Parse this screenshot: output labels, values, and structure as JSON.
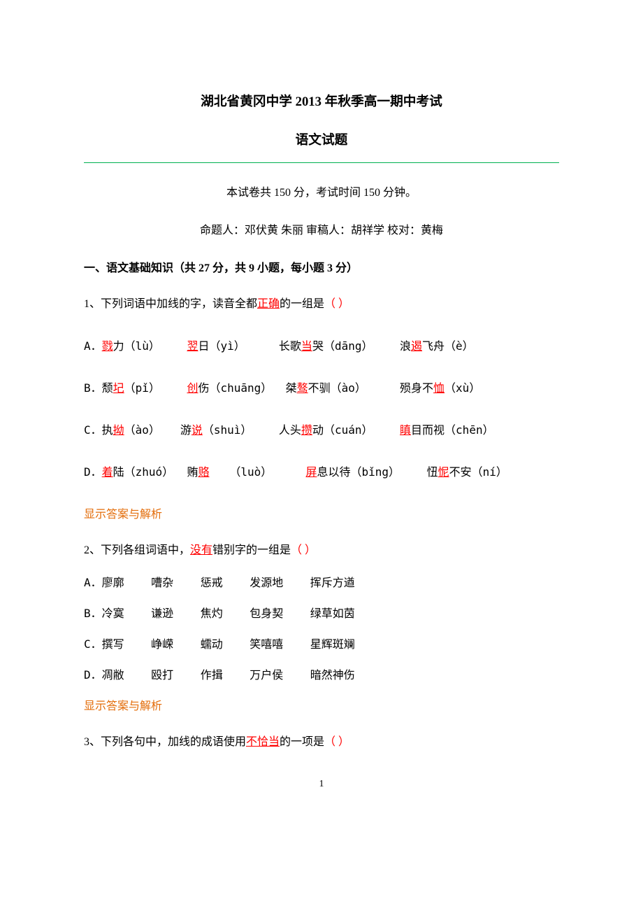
{
  "title": "湖北省黄冈中学 2013 年秋季高一期中考试",
  "subtitle": "语文试题",
  "info_line": "本试卷共 150 分，考试时间 150 分钟。",
  "authors_line": "命题人：邓伏黄 朱丽     审稿人：胡祥学   校对：黄梅",
  "section_header": "一、语文基础知识（共 27 分，共 9 小题，每小题 3 分）",
  "q1": {
    "stem_pre": "1、下列词语中加线的字，读音全都",
    "stem_key": "正确",
    "stem_post": "的一组是",
    "blank": "（   ）",
    "optionA": {
      "label": "A．",
      "p1_pre": "",
      "p1_u": "戮",
      "p1_post": "力（lù）    ",
      "p2_u": "翌",
      "p2_post": "日（yì）     长歌",
      "p3_u": "当",
      "p3_post": "哭（dāng）    浪",
      "p4_u": "遏",
      "p4_post": "飞舟（è）"
    },
    "optionB": {
      "label": "B．",
      "p1_pre": "颓",
      "p1_u": "圮",
      "p1_post": "（pǐ）    ",
      "p2_u": "创",
      "p2_post": "伤（chuāng）  桀",
      "p3_u": "骜",
      "p3_post": "不驯（ào）     殒身不",
      "p4_u": "恤",
      "p4_post": "（xù）"
    },
    "optionC": {
      "label": "C．",
      "p1_pre": "执",
      "p1_u": "拗",
      "p1_post": "（ào）   游",
      "p2_u": "说",
      "p2_post": "（shuì）    人头",
      "p3_u": "攒",
      "p3_post": "动（cuán）    ",
      "p4_u": "瞋",
      "p4_post": "目而视（chēn）"
    },
    "optionD": {
      "label": "D．",
      "p1_u": "着",
      "p1_post": "陆（zhuó）  贿",
      "p2_u": "赂",
      "p2_post": "   （luò）     ",
      "p3_u": "屏",
      "p3_post": "息以待（bǐng）    忸",
      "p4_u": "怩",
      "p4_post": "不安（ní）"
    }
  },
  "q2": {
    "stem_pre": "2、下列各组词语中，",
    "stem_key": "没有",
    "stem_post": "错别字的一组是",
    "blank": "（   ）",
    "optionA": "A．廖廓    嘈杂    惩戒    发源地    挥斥方遒",
    "optionB": "B．冷寞    谦逊    焦灼    包身契    绿草如茵",
    "optionC": "C．撰写    峥嵘    蠕动    笑嘻嘻    星辉斑斓",
    "optionD": "D．凋敝    殴打    作揖    万户侯    暗然神伤"
  },
  "q3": {
    "stem_pre": "3、下列各句中，加线的成语使用",
    "stem_key": "不恰当",
    "stem_post": "的一项是",
    "blank": "（   ）"
  },
  "answer_link": "显示答案与解析",
  "page_num": "1",
  "colors": {
    "red": "#ff0000",
    "orange": "#e36c09",
    "green": "#00b050",
    "black": "#000000",
    "bg": "#ffffff"
  }
}
